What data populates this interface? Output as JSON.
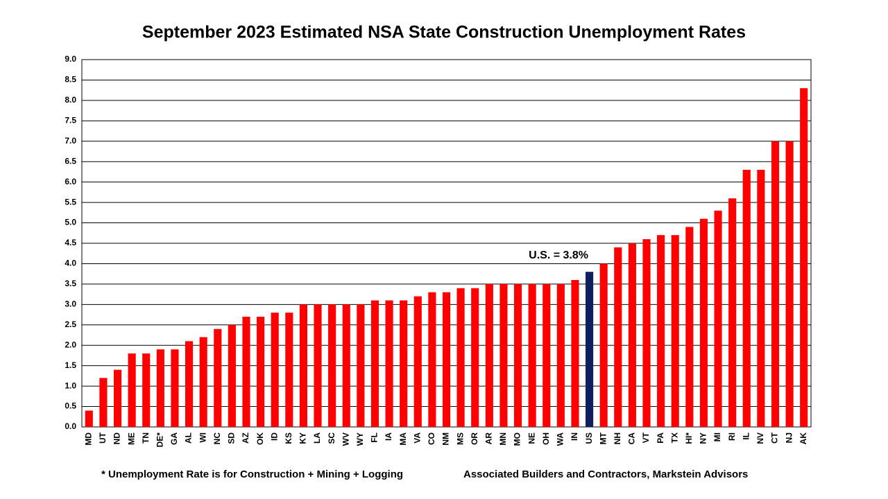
{
  "chart_data": {
    "type": "bar",
    "title": "September 2023 Estimated NSA State Construction Unemployment Rates",
    "categories": [
      "MD",
      "UT",
      "ND",
      "ME",
      "TN",
      "DE*",
      "GA",
      "AL",
      "WI",
      "NC",
      "SD",
      "AZ",
      "OK",
      "ID",
      "KS",
      "KY",
      "LA",
      "SC",
      "WV",
      "WY",
      "FL",
      "IA",
      "MA",
      "VA",
      "CO",
      "NM",
      "MS",
      "OR",
      "AR",
      "MN",
      "MO",
      "NE",
      "OH",
      "WA",
      "IN",
      "US",
      "MT",
      "NH",
      "CA",
      "VT",
      "PA",
      "TX",
      "HI*",
      "NY",
      "MI",
      "RI",
      "IL",
      "NV",
      "CT",
      "NJ",
      "AK"
    ],
    "values": [
      0.4,
      1.2,
      1.4,
      1.8,
      1.8,
      1.9,
      1.9,
      2.1,
      2.2,
      2.4,
      2.5,
      2.7,
      2.7,
      2.8,
      2.8,
      3.0,
      3.0,
      3.0,
      3.0,
      3.0,
      3.1,
      3.1,
      3.1,
      3.2,
      3.3,
      3.3,
      3.4,
      3.4,
      3.5,
      3.5,
      3.5,
      3.5,
      3.5,
      3.5,
      3.6,
      3.8,
      4.0,
      4.4,
      4.5,
      4.6,
      4.7,
      4.7,
      4.9,
      5.1,
      5.3,
      5.6,
      6.3,
      6.3,
      7.0,
      7.0,
      8.3
    ],
    "colors": [
      "#ff0000",
      "#ff0000",
      "#ff0000",
      "#ff0000",
      "#ff0000",
      "#ff0000",
      "#ff0000",
      "#ff0000",
      "#ff0000",
      "#ff0000",
      "#ff0000",
      "#ff0000",
      "#ff0000",
      "#ff0000",
      "#ff0000",
      "#ff0000",
      "#ff0000",
      "#ff0000",
      "#ff0000",
      "#ff0000",
      "#ff0000",
      "#ff0000",
      "#ff0000",
      "#ff0000",
      "#ff0000",
      "#ff0000",
      "#ff0000",
      "#ff0000",
      "#ff0000",
      "#ff0000",
      "#ff0000",
      "#ff0000",
      "#ff0000",
      "#ff0000",
      "#ff0000",
      "#0d1f5c",
      "#ff0000",
      "#ff0000",
      "#ff0000",
      "#ff0000",
      "#ff0000",
      "#ff0000",
      "#ff0000",
      "#ff0000",
      "#ff0000",
      "#ff0000",
      "#ff0000",
      "#ff0000",
      "#ff0000",
      "#ff0000",
      "#ff0000"
    ],
    "ylim": [
      0,
      9
    ],
    "yticks": [
      {
        "value": 0,
        "label": "0.0"
      },
      0.5,
      {
        "value": 1,
        "label": "1.0"
      },
      1.5,
      {
        "value": 2,
        "label": "2.0"
      },
      2.5,
      {
        "value": 3,
        "label": "3.0"
      },
      3.5,
      {
        "value": 4,
        "label": "4.0"
      },
      4.5,
      {
        "value": 5,
        "label": "5.0"
      },
      5.5,
      {
        "value": 6,
        "label": "6.0"
      },
      6.5,
      {
        "value": 7,
        "label": "7.0"
      },
      7.5,
      {
        "value": 8,
        "label": "8.0"
      },
      8.5,
      {
        "value": 9,
        "label": "9.0"
      }
    ],
    "grid": true,
    "annotation": "U.S. = 3.8%",
    "footnote": "* Unemployment Rate is for Construction + Mining + Logging",
    "source": "Associated Builders and Contractors, Markstein Advisors"
  }
}
